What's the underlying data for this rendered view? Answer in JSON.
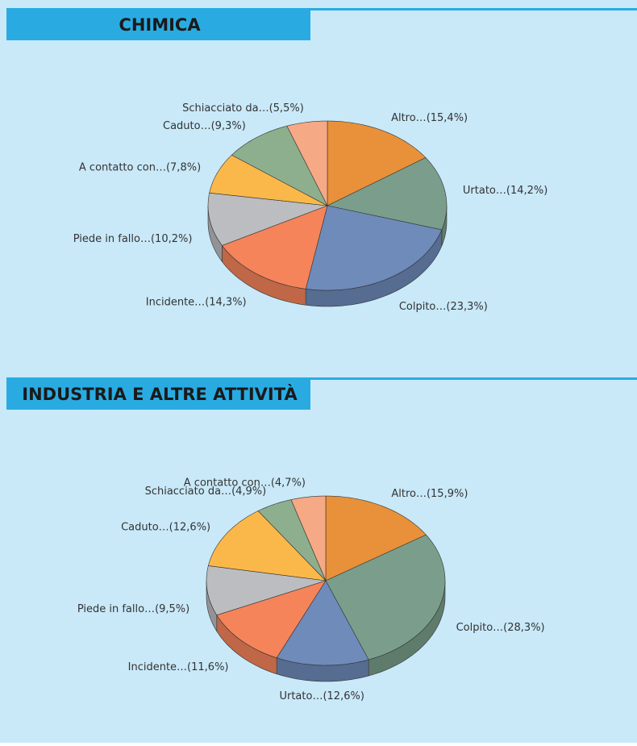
{
  "chart_data": [
    {
      "type": "pie",
      "title": "CHIMICA",
      "categories": [
        "Altro…",
        "Urtato…",
        "Colpito…",
        "Incidente…",
        "Piede in fallo…",
        "A contatto con…",
        "Caduto…",
        "Schiacciato da…"
      ],
      "values": [
        15.4,
        14.2,
        23.3,
        14.3,
        10.2,
        7.8,
        9.3,
        5.5
      ],
      "value_labels": [
        "(15,4%)",
        "(14,2%)",
        "(23,3%)",
        "(14,3%)",
        "(10,2%)",
        "(7,8%)",
        "(9,3%)",
        "(5,5%)"
      ],
      "colors": [
        "#e8913a",
        "#7a9e8b",
        "#6e8bba",
        "#f5845a",
        "#bcbdc1",
        "#fbb84a",
        "#8daf8e",
        "#f5a985"
      ]
    },
    {
      "type": "pie",
      "title": "INDUSTRIA E ALTRE ATTIVITÀ",
      "categories": [
        "Altro…",
        "Colpito…",
        "Urtato…",
        "Incidente…",
        "Piede in fallo…",
        "Caduto…",
        "Schiacciato da…",
        "A contatto con…"
      ],
      "values": [
        15.9,
        28.3,
        12.6,
        11.6,
        9.5,
        12.6,
        4.9,
        4.7
      ],
      "value_labels": [
        "(15,9%)",
        "(28,3%)",
        "(12,6%)",
        "(11,6%)",
        "(9,5%)",
        "(12,6%)",
        "(4,9%)",
        "(4,7%)"
      ],
      "colors": [
        "#e8913a",
        "#7a9e8b",
        "#6e8bba",
        "#f5845a",
        "#bcbdc1",
        "#fbb84a",
        "#8daf8e",
        "#f5a985"
      ]
    }
  ]
}
